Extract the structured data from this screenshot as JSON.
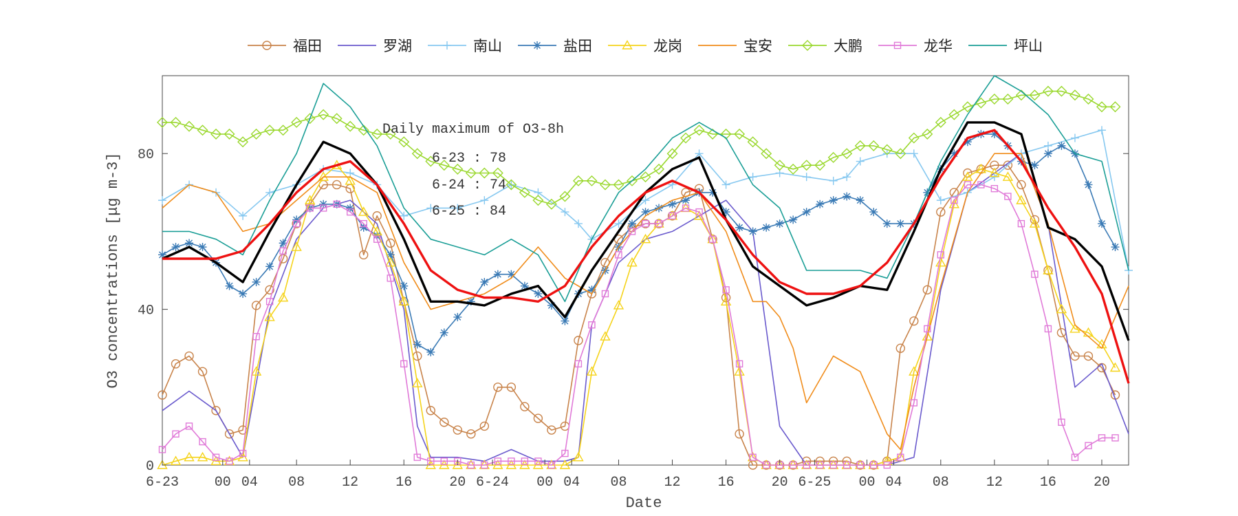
{
  "chart_data": {
    "type": "line",
    "xlabel": "Date",
    "ylabel": "O3 concentrations [μg m-3]",
    "ylim": [
      0,
      100
    ],
    "yticks": [
      0,
      40,
      80
    ],
    "grid": false,
    "legend_position": "top",
    "x_tick_labels": [
      "6-23",
      "00",
      "04",
      "08",
      "12",
      "16",
      "20",
      "6-24",
      "00",
      "04",
      "08",
      "12",
      "16",
      "20",
      "6-25",
      "00",
      "04",
      "08",
      "12",
      "16",
      "20"
    ],
    "annotation": {
      "title": "Daily maximum of O3-8h",
      "lines": [
        "6-23 : 78",
        "6-24 : 74",
        "6-25 : 84"
      ]
    },
    "series": [
      {
        "name": "福田",
        "color": "#c8834a",
        "marker": "circle",
        "x": [
          0,
          1,
          2,
          3,
          4,
          5,
          6,
          7,
          8,
          9,
          10,
          11,
          12,
          13,
          14,
          15,
          16,
          17,
          18,
          19,
          20,
          21,
          22,
          23,
          24,
          25,
          26,
          27,
          28,
          29,
          30,
          31,
          32,
          33,
          34,
          35,
          36,
          37,
          38,
          39,
          40,
          41,
          42,
          43,
          44,
          45,
          46,
          47,
          48,
          49,
          50,
          51,
          52,
          53,
          54,
          55,
          56,
          57,
          58,
          59,
          60,
          61,
          62,
          63,
          64,
          65,
          66,
          67,
          68,
          69,
          70,
          71
        ],
        "values": [
          18,
          26,
          28,
          24,
          14,
          8,
          9,
          41,
          45,
          53,
          62,
          67,
          72,
          72,
          71,
          54,
          64,
          57,
          42,
          28,
          14,
          11,
          9,
          8,
          10,
          20,
          20,
          15,
          12,
          9,
          10,
          32,
          44,
          52,
          58,
          61,
          62,
          62,
          64,
          70,
          71,
          58,
          43,
          8,
          0,
          0,
          0,
          0,
          1,
          1,
          1,
          1,
          0,
          0,
          1,
          30,
          37,
          45,
          65,
          70,
          75,
          76,
          77,
          77,
          72,
          63,
          50,
          34,
          28,
          28,
          25,
          18
        ]
      },
      {
        "name": "罗湖",
        "color": "#6a5acd",
        "marker": "none",
        "x": [
          0,
          2,
          4,
          6,
          8,
          10,
          12,
          14,
          16,
          18,
          19,
          20,
          22,
          24,
          26,
          28,
          30,
          31,
          32,
          34,
          36,
          38,
          40,
          42,
          44,
          46,
          48,
          50,
          52,
          54,
          56,
          58,
          60,
          62,
          64,
          66,
          68,
          70,
          72
        ],
        "values": [
          14,
          19,
          14,
          2,
          40,
          58,
          66,
          68,
          62,
          40,
          10,
          2,
          2,
          1,
          4,
          1,
          1,
          2,
          36,
          52,
          58,
          60,
          64,
          68,
          60,
          10,
          0,
          0,
          0,
          0,
          2,
          45,
          70,
          75,
          80,
          62,
          20,
          26,
          8
        ]
      },
      {
        "name": "南山",
        "color": "#86c8f0",
        "marker": "plus",
        "x": [
          0,
          2,
          4,
          6,
          8,
          10,
          12,
          14,
          16,
          18,
          20,
          22,
          24,
          26,
          28,
          30,
          31,
          32,
          34,
          36,
          38,
          40,
          42,
          44,
          46,
          48,
          50,
          51,
          52,
          54,
          56,
          58,
          60,
          62,
          64,
          66,
          68,
          70,
          72
        ],
        "values": [
          68,
          72,
          70,
          64,
          70,
          72,
          76,
          75,
          72,
          64,
          66,
          66,
          68,
          72,
          70,
          65,
          62,
          58,
          62,
          68,
          72,
          80,
          72,
          74,
          75,
          74,
          73,
          74,
          78,
          80,
          80,
          68,
          70,
          74,
          80,
          82,
          84,
          86,
          50
        ]
      },
      {
        "name": "盐田",
        "color": "#3a7ab5",
        "marker": "star",
        "x": [
          0,
          1,
          2,
          3,
          4,
          5,
          6,
          7,
          8,
          9,
          10,
          11,
          12,
          13,
          14,
          15,
          16,
          17,
          18,
          19,
          20,
          21,
          22,
          23,
          24,
          25,
          26,
          27,
          28,
          29,
          30,
          31,
          32,
          33,
          34,
          35,
          36,
          37,
          38,
          39,
          40,
          41,
          42,
          43,
          44,
          45,
          46,
          47,
          48,
          49,
          50,
          51,
          52,
          53,
          54,
          55,
          56,
          57,
          58,
          59,
          60,
          61,
          62,
          63,
          64,
          65,
          66,
          67,
          68,
          69,
          70,
          71
        ],
        "values": [
          54,
          56,
          57,
          56,
          52,
          46,
          44,
          47,
          51,
          57,
          63,
          66,
          67,
          67,
          66,
          61,
          59,
          54,
          46,
          31,
          29,
          34,
          38,
          42,
          47,
          49,
          49,
          46,
          44,
          41,
          37,
          44,
          45,
          50,
          56,
          62,
          65,
          66,
          67,
          68,
          70,
          70,
          65,
          61,
          60,
          61,
          62,
          63,
          65,
          67,
          68,
          69,
          68,
          65,
          62,
          62,
          62,
          70,
          76,
          80,
          83,
          85,
          85,
          82,
          78,
          77,
          80,
          82,
          80,
          72,
          62,
          56
        ]
      },
      {
        "name": "龙岗",
        "color": "#f5d31a",
        "marker": "triangle",
        "x": [
          0,
          1,
          2,
          3,
          4,
          5,
          6,
          7,
          8,
          9,
          10,
          11,
          12,
          13,
          14,
          15,
          16,
          17,
          18,
          19,
          20,
          21,
          22,
          23,
          24,
          25,
          26,
          27,
          28,
          29,
          30,
          31,
          32,
          33,
          34,
          35,
          36,
          37,
          38,
          39,
          40,
          41,
          42,
          43,
          44,
          45,
          46,
          47,
          48,
          49,
          50,
          51,
          52,
          53,
          54,
          55,
          56,
          57,
          58,
          59,
          60,
          61,
          62,
          63,
          64,
          65,
          66,
          67,
          68,
          69,
          70,
          71
        ],
        "values": [
          0,
          1,
          2,
          2,
          1,
          1,
          2,
          24,
          38,
          43,
          56,
          68,
          74,
          77,
          73,
          65,
          60,
          52,
          42,
          21,
          0,
          0,
          0,
          0,
          0,
          0,
          0,
          0,
          0,
          0,
          0,
          2,
          24,
          33,
          41,
          52,
          58,
          62,
          64,
          66,
          64,
          58,
          42,
          24,
          2,
          0,
          0,
          0,
          0,
          0,
          0,
          0,
          0,
          0,
          1,
          2,
          24,
          33,
          52,
          67,
          74,
          76,
          75,
          74,
          68,
          62,
          50,
          40,
          35,
          34,
          31,
          25
        ]
      },
      {
        "name": "宝安",
        "color": "#f08c1a",
        "marker": "none",
        "x": [
          0,
          2,
          4,
          6,
          8,
          10,
          12,
          14,
          16,
          18,
          20,
          22,
          24,
          26,
          28,
          30,
          32,
          34,
          36,
          38,
          40,
          42,
          44,
          45,
          46,
          47,
          48,
          50,
          52,
          54,
          55,
          56,
          58,
          60,
          62,
          64,
          66,
          68,
          70,
          72
        ],
        "values": [
          66,
          72,
          70,
          60,
          62,
          68,
          74,
          74,
          70,
          52,
          40,
          42,
          44,
          48,
          56,
          48,
          44,
          56,
          64,
          68,
          70,
          60,
          42,
          42,
          38,
          30,
          16,
          28,
          24,
          8,
          4,
          20,
          46,
          70,
          80,
          80,
          62,
          36,
          30,
          46
        ]
      },
      {
        "name": "大鹏",
        "color": "#9ad82e",
        "marker": "diamond",
        "x": [
          0,
          1,
          2,
          3,
          4,
          5,
          6,
          7,
          8,
          9,
          10,
          11,
          12,
          13,
          14,
          15,
          16,
          17,
          18,
          19,
          20,
          21,
          22,
          23,
          24,
          25,
          26,
          27,
          28,
          29,
          30,
          31,
          32,
          33,
          34,
          35,
          36,
          37,
          38,
          39,
          40,
          41,
          42,
          43,
          44,
          45,
          46,
          47,
          48,
          49,
          50,
          51,
          52,
          53,
          54,
          55,
          56,
          57,
          58,
          59,
          60,
          61,
          62,
          63,
          64,
          65,
          66,
          67,
          68,
          69,
          70,
          71
        ],
        "values": [
          88,
          88,
          87,
          86,
          85,
          85,
          83,
          85,
          86,
          86,
          88,
          89,
          90,
          89,
          87,
          86,
          85,
          85,
          83,
          80,
          78,
          77,
          76,
          75,
          75,
          75,
          72,
          70,
          68,
          67,
          69,
          73,
          73,
          72,
          72,
          73,
          74,
          76,
          80,
          84,
          86,
          85,
          85,
          85,
          83,
          80,
          77,
          76,
          77,
          77,
          79,
          80,
          82,
          82,
          81,
          80,
          84,
          85,
          88,
          90,
          92,
          93,
          94,
          94,
          95,
          95,
          96,
          96,
          95,
          94,
          92,
          92
        ]
      },
      {
        "name": "龙华",
        "color": "#e07ad8",
        "marker": "square",
        "x": [
          0,
          1,
          2,
          3,
          4,
          5,
          6,
          7,
          8,
          9,
          10,
          11,
          12,
          13,
          14,
          15,
          16,
          17,
          18,
          19,
          20,
          21,
          22,
          23,
          24,
          25,
          26,
          27,
          28,
          29,
          30,
          31,
          32,
          33,
          34,
          35,
          36,
          37,
          38,
          39,
          40,
          41,
          42,
          43,
          44,
          45,
          46,
          47,
          48,
          49,
          50,
          51,
          52,
          53,
          54,
          55,
          56,
          57,
          58,
          59,
          60,
          61,
          62,
          63,
          64,
          65,
          66,
          67,
          68,
          69,
          70,
          71
        ],
        "values": [
          4,
          8,
          10,
          6,
          2,
          1,
          3,
          33,
          42,
          55,
          62,
          66,
          66,
          67,
          65,
          62,
          58,
          48,
          26,
          2,
          1,
          1,
          1,
          0,
          0,
          1,
          1,
          1,
          1,
          0,
          3,
          26,
          36,
          44,
          54,
          60,
          62,
          62,
          64,
          66,
          65,
          58,
          45,
          26,
          2,
          0,
          0,
          0,
          0,
          0,
          0,
          0,
          0,
          0,
          0,
          2,
          16,
          35,
          54,
          68,
          72,
          72,
          71,
          69,
          62,
          49,
          35,
          11,
          2,
          5,
          7,
          7
        ]
      },
      {
        "name": "坪山",
        "color": "#1a9e96",
        "marker": "none",
        "x": [
          0,
          2,
          4,
          6,
          8,
          10,
          12,
          14,
          16,
          18,
          20,
          22,
          24,
          26,
          28,
          30,
          32,
          34,
          36,
          38,
          40,
          42,
          44,
          46,
          48,
          50,
          52,
          54,
          56,
          58,
          60,
          62,
          64,
          66,
          68,
          70,
          72
        ],
        "values": [
          60,
          60,
          58,
          54,
          68,
          80,
          98,
          92,
          82,
          66,
          58,
          56,
          54,
          58,
          54,
          42,
          58,
          70,
          76,
          84,
          88,
          84,
          72,
          66,
          50,
          50,
          50,
          48,
          62,
          78,
          90,
          100,
          96,
          90,
          80,
          78,
          50
        ]
      },
      {
        "name": "",
        "color": "#000000",
        "marker": "none",
        "x": [
          0,
          2,
          4,
          6,
          8,
          10,
          12,
          14,
          16,
          18,
          20,
          22,
          24,
          26,
          28,
          30,
          32,
          34,
          36,
          38,
          40,
          42,
          44,
          46,
          48,
          50,
          52,
          54,
          56,
          58,
          60,
          62,
          64,
          66,
          68,
          70,
          72
        ],
        "values": [
          53,
          56,
          52,
          47,
          60,
          72,
          83,
          80,
          72,
          58,
          42,
          42,
          41,
          44,
          46,
          38,
          50,
          60,
          70,
          76,
          79,
          63,
          51,
          46,
          41,
          43,
          46,
          45,
          60,
          76,
          88,
          88,
          85,
          61,
          58,
          51,
          32
        ]
      },
      {
        "name": "",
        "color": "#ee1111",
        "marker": "none",
        "x": [
          0,
          2,
          4,
          6,
          8,
          10,
          12,
          14,
          16,
          18,
          20,
          22,
          24,
          26,
          28,
          30,
          32,
          34,
          36,
          38,
          40,
          42,
          44,
          46,
          48,
          50,
          52,
          54,
          56,
          58,
          60,
          62,
          64,
          66,
          68,
          70,
          72
        ],
        "values": [
          53,
          53,
          53,
          55,
          62,
          70,
          76,
          78,
          72,
          62,
          50,
          45,
          43,
          43,
          42,
          46,
          56,
          64,
          70,
          73,
          70,
          63,
          54,
          47,
          44,
          44,
          46,
          52,
          62,
          74,
          84,
          86,
          78,
          66,
          56,
          44,
          21
        ]
      }
    ]
  }
}
